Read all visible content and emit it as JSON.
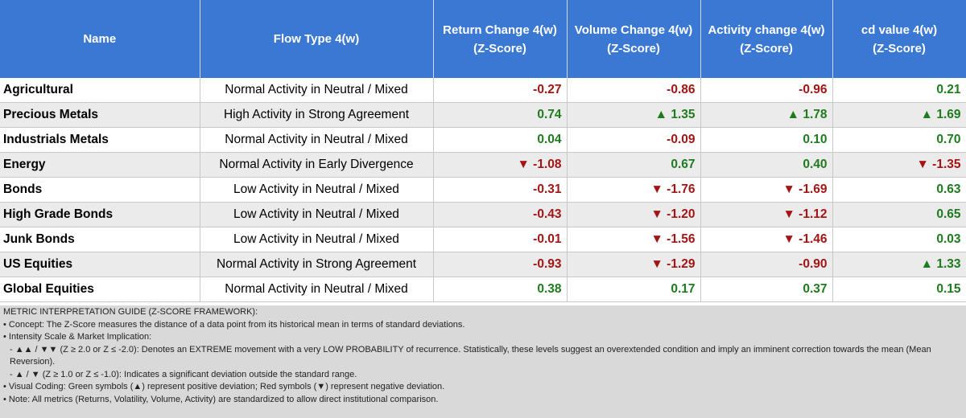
{
  "header": {
    "columns": [
      "Name",
      "Flow Type 4(w)",
      "Return Change 4(w)\n(Z-Score)",
      "Volume Change 4(w)\n(Z-Score)",
      "Activity change 4(w)\n(Z-Score)",
      "cd value 4(w)\n(Z-Score)"
    ]
  },
  "table": {
    "rows": [
      [
        "Agricultural",
        "Normal Activity in Neutral / Mixed",
        "-0.27",
        "-0.86",
        "-0.96",
        "0.21"
      ],
      [
        "Precious Metals",
        "High Activity in Strong Agreement",
        "0.74",
        "▲ 1.35",
        "▲ 1.78",
        "▲ 1.69"
      ],
      [
        "Industrials Metals",
        "Normal Activity in Neutral / Mixed",
        "0.04",
        "-0.09",
        "0.10",
        "0.70"
      ],
      [
        "Energy",
        "Normal Activity in Early Divergence",
        "▼ -1.08",
        "0.67",
        "0.40",
        "▼ -1.35"
      ],
      [
        "Bonds",
        "Low Activity in Neutral / Mixed",
        "-0.31",
        "▼ -1.76",
        "▼ -1.69",
        "0.63"
      ],
      [
        "High Grade Bonds",
        "Low Activity in Neutral / Mixed",
        "-0.43",
        "▼ -1.20",
        "▼ -1.12",
        "0.65"
      ],
      [
        "Junk Bonds",
        "Low Activity in Neutral / Mixed",
        "-0.01",
        "▼ -1.56",
        "▼ -1.46",
        "0.03"
      ],
      [
        "US Equities",
        "Normal Activity in Strong Agreement",
        "-0.93",
        "▼ -1.29",
        "-0.90",
        "▲ 1.33"
      ],
      [
        "Global Equities",
        "Normal Activity in Neutral / Mixed",
        "0.38",
        "0.17",
        "0.37",
        "0.15"
      ]
    ]
  },
  "notes": {
    "title": "METRIC INTERPRETATION GUIDE (Z-SCORE FRAMEWORK):",
    "lines": [
      "• Concept: The Z-Score measures the distance of a data point from its historical mean in terms of standard deviations.",
      "• Intensity Scale & Market Implication:",
      "- ▲▲ / ▼▼ (Z ≥ 2.0 or Z ≤ -2.0): Denotes an EXTREME movement with a very LOW PROBABILITY of recurrence. Statistically, these levels suggest an overextended condition and imply an imminent correction towards the mean (Mean Reversion).",
      "- ▲ / ▼ (Z ≥ 1.0 or Z ≤ -1.0): Indicates a significant deviation outside the standard range.",
      "• Visual Coding: Green symbols (▲) represent positive deviation; Red symbols (▼) represent negative deviation.",
      "• Note: All metrics (Returns, Volatility, Volume, Activity) are standardized to allow direct institutional comparison."
    ]
  }
}
